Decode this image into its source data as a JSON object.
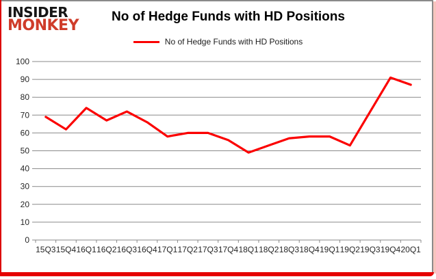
{
  "logo": {
    "line1": "INSIDER",
    "line2": "MONKEY"
  },
  "header": {
    "title": "No of Hedge Funds with HD Positions"
  },
  "legend": {
    "label": "No of Hedge Funds with HD Positions",
    "marker_color": "#fb0000"
  },
  "chart_data": {
    "type": "line",
    "title": "No of Hedge Funds with HD Positions",
    "categories": [
      "15Q3",
      "15Q4",
      "16Q1",
      "16Q2",
      "16Q3",
      "16Q4",
      "17Q1",
      "17Q2",
      "17Q3",
      "17Q4",
      "18Q1",
      "18Q2",
      "18Q3",
      "18Q4",
      "19Q1",
      "19Q2",
      "19Q3",
      "19Q4",
      "20Q1"
    ],
    "series": [
      {
        "name": "No of Hedge Funds with HD Positions",
        "color": "#fb0000",
        "values": [
          69,
          62,
          74,
          67,
          72,
          66,
          58,
          60,
          60,
          56,
          49,
          53,
          57,
          58,
          58,
          53,
          72,
          91,
          87
        ]
      }
    ],
    "ylim": [
      0,
      100
    ],
    "yticks": [
      0,
      10,
      20,
      30,
      40,
      50,
      60,
      70,
      80,
      90,
      100
    ],
    "grid": true,
    "grid_color": "#898989",
    "axis_text_color": "#262626",
    "legend_position": "top",
    "xlabel": "",
    "ylabel": ""
  },
  "colors": {
    "accent_red": "#e60000",
    "logo_red": "#cf3c2a",
    "border_gray": "#8a8a8a"
  }
}
